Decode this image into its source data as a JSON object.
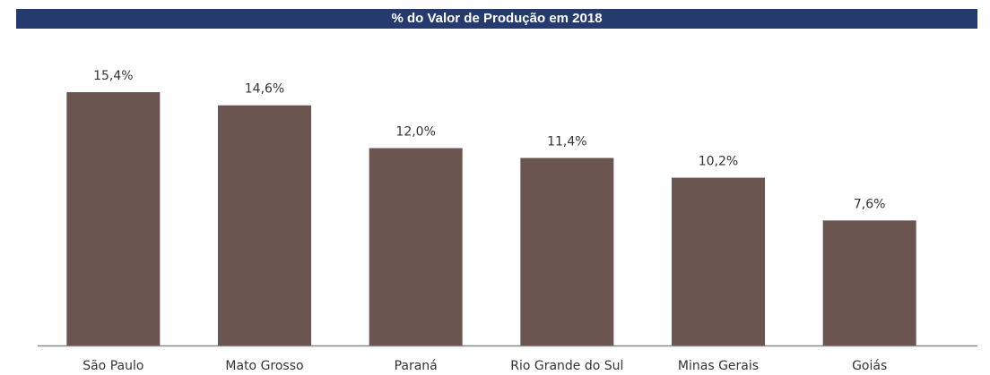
{
  "chart_data": {
    "type": "bar",
    "title": "% do Valor de Produção em 2018",
    "categories": [
      "São Paulo",
      "Mato Grosso",
      "Paraná",
      "Rio Grande do Sul",
      "Minas Gerais",
      "Goiás"
    ],
    "values": [
      15.4,
      14.6,
      12.0,
      11.4,
      10.2,
      7.6
    ],
    "value_labels": [
      "15,4%",
      "14,6%",
      "12,0%",
      "11,4%",
      "10,2%",
      "7,6%"
    ],
    "color": "#6b5550"
  }
}
